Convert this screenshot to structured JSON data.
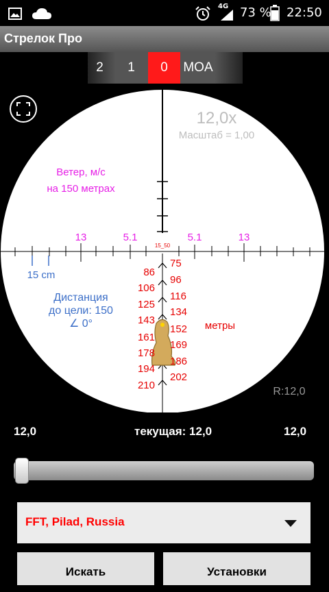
{
  "status_bar": {
    "network": "4G",
    "battery_percent": "73 %",
    "time": "22:50"
  },
  "app": {
    "title": "Стрелок Про"
  },
  "click_selector": {
    "values": [
      "2",
      "1",
      "0"
    ],
    "selected": "0",
    "unit": "MOA"
  },
  "scope": {
    "magnification": "12,0x",
    "scale_label": "Масштаб = 1,00",
    "wind_label": "Ветер, м/с",
    "wind_distance": "на 150 метрах",
    "wind_marks": [
      "13",
      "5.1",
      "5.1",
      "13"
    ],
    "center_mark": "15_50",
    "size_label": "15 cm",
    "distance_line1": "Дистанция",
    "distance_line2": "до цели: 150",
    "angle": "∠ 0°",
    "range_left": [
      "86",
      "106",
      "125",
      "143",
      "161",
      "178",
      "194",
      "210"
    ],
    "range_right": [
      "75",
      "96",
      "116",
      "134",
      "152",
      "169",
      "186",
      "202"
    ],
    "units_label": "метры",
    "reticle_label": "R:12,0"
  },
  "zoom": {
    "min": "12,0",
    "current": "текущая: 12,0",
    "max": "12,0",
    "slider_fraction": 0
  },
  "profile_dropdown": {
    "value": "FFT, Pilad, Russia"
  },
  "buttons": {
    "search": "Искать",
    "settings": "Установки"
  },
  "colors": {
    "magenta": "#e61ee6",
    "range_red": "#e60000",
    "info_blue": "#3c6fc8",
    "selected_red": "#ff1a1a",
    "target": "#d3aa5c"
  },
  "icons": [
    "image-icon",
    "cloud-icon",
    "alarm-icon",
    "signal-icon",
    "battery-icon",
    "fullscreen-icon",
    "dropdown-arrow-icon",
    "marmot-target-icon"
  ]
}
